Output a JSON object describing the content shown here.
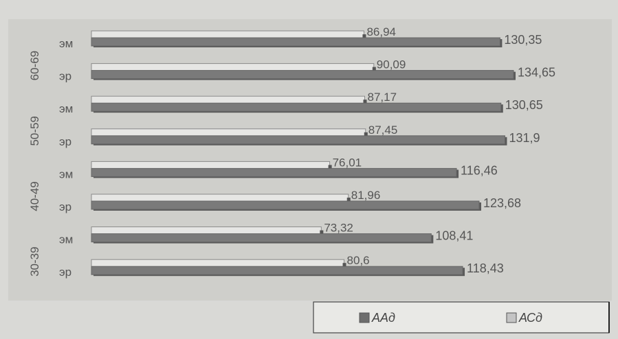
{
  "chart_data": {
    "type": "bar",
    "orientation": "horizontal",
    "groups": [
      "60-69",
      "50-59",
      "40-49",
      "30-39"
    ],
    "categories": [
      "эм",
      "эр",
      "эм",
      "эр",
      "эм",
      "эр",
      "эм",
      "эр"
    ],
    "category_groups": [
      "60-69",
      "60-69",
      "50-59",
      "50-59",
      "40-49",
      "40-49",
      "30-39",
      "30-39"
    ],
    "series": [
      {
        "name": "АСд",
        "color": "#bdbdbd",
        "values": [
          130.35,
          134.65,
          130.65,
          131.9,
          116.46,
          123.68,
          108.41,
          118.43
        ],
        "labels": [
          "130,35",
          "134,65",
          "130,65",
          "131,9",
          "116,46",
          "123,68",
          "108,41",
          "118,43"
        ]
      },
      {
        "name": "ААд",
        "color": "#e6e6e4",
        "values": [
          86.94,
          90.09,
          87.17,
          87.45,
          76.01,
          81.96,
          73.32,
          80.6
        ],
        "labels": [
          "86,94",
          "90,09",
          "87,17",
          "87,45",
          "76,01",
          "81,96",
          "73,32",
          "80,6"
        ]
      }
    ],
    "legend": {
      "position": "bottom-right",
      "items": [
        {
          "label": "ААд",
          "color": "#6e6e6e"
        },
        {
          "label": "АСд",
          "color": "#c4c4c4"
        }
      ]
    },
    "xlim": [
      0,
      150
    ],
    "grid": false
  },
  "colors": {
    "background": "#d9d9d6",
    "plot_area": "#cfcfcb",
    "bar_dark": "#7a7a7a",
    "bar_light": "#e6e6e4",
    "text": "#555555"
  }
}
